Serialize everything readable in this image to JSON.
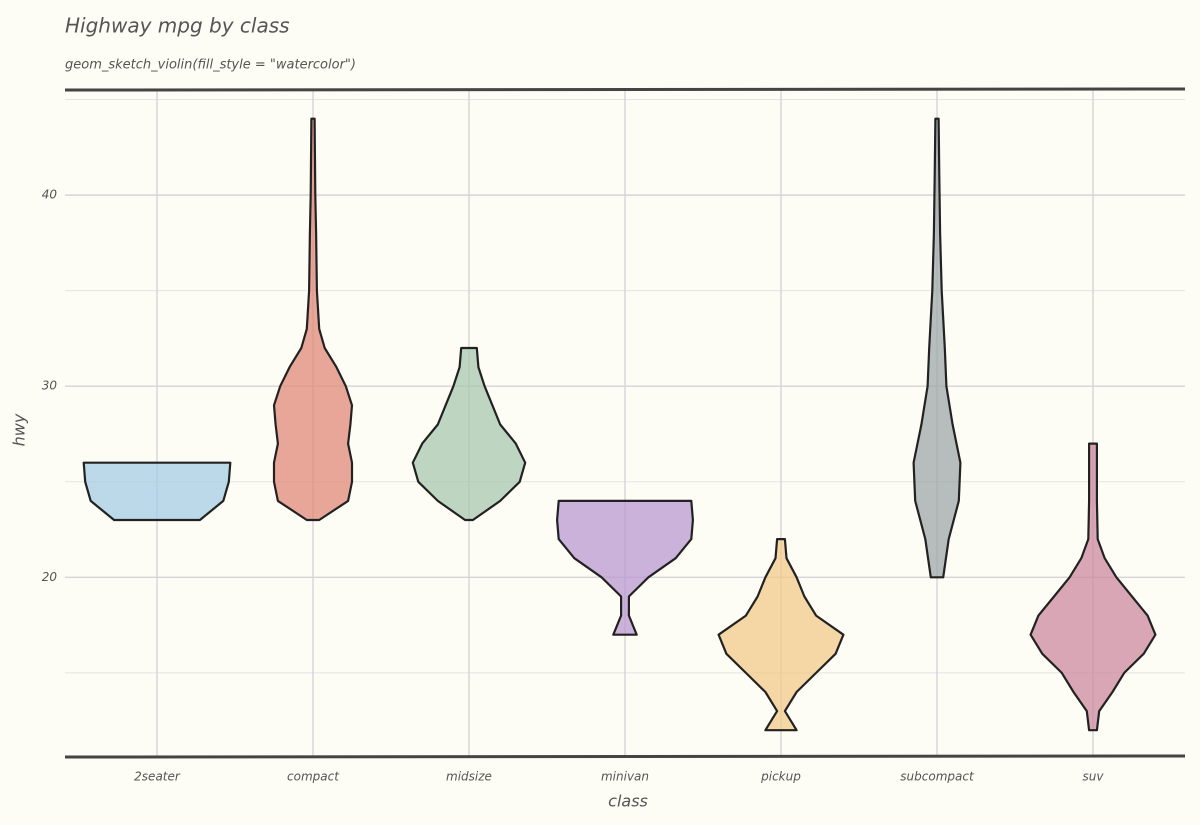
{
  "chart_data": {
    "type": "violin",
    "title": "Highway mpg by class",
    "subtitle": "geom_sketch_violin(fill_style = \"watercolor\")",
    "x_label": "class",
    "y_label": "hwy",
    "categories": [
      "2seater",
      "compact",
      "midsize",
      "minivan",
      "pickup",
      "subcompact",
      "suv"
    ],
    "violins": [
      {
        "color": "#a6cde4",
        "y": [
          23,
          24,
          25,
          26
        ],
        "width": [
          0.55,
          0.85,
          0.92,
          0.94
        ]
      },
      {
        "color": "#e08a78",
        "y": [
          23,
          24,
          25,
          26,
          27,
          28,
          29,
          30,
          31,
          32,
          33,
          35,
          38,
          40,
          44
        ],
        "width": [
          0.08,
          0.45,
          0.5,
          0.5,
          0.45,
          0.48,
          0.5,
          0.42,
          0.3,
          0.15,
          0.08,
          0.05,
          0.04,
          0.03,
          0.02
        ]
      },
      {
        "color": "#a8c8b0",
        "y": [
          23,
          24,
          25,
          26,
          27,
          28,
          29,
          30,
          31,
          32
        ],
        "width": [
          0.05,
          0.4,
          0.65,
          0.72,
          0.6,
          0.4,
          0.3,
          0.2,
          0.12,
          0.1
        ]
      },
      {
        "color": "#b99ad0",
        "y": [
          17,
          18,
          19,
          20,
          21,
          22,
          23,
          24
        ],
        "width": [
          0.15,
          0.05,
          0.05,
          0.3,
          0.65,
          0.85,
          0.87,
          0.85
        ]
      },
      {
        "color": "#f2c98a",
        "y": [
          12,
          13,
          14,
          15,
          16,
          17,
          18,
          19,
          20,
          21,
          22
        ],
        "width": [
          0.2,
          0.05,
          0.2,
          0.45,
          0.7,
          0.8,
          0.45,
          0.3,
          0.2,
          0.07,
          0.05
        ]
      },
      {
        "color": "#9da8a8",
        "y": [
          20,
          22,
          24,
          26,
          28,
          30,
          32,
          35,
          38,
          41,
          44
        ],
        "width": [
          0.08,
          0.15,
          0.28,
          0.3,
          0.2,
          0.12,
          0.1,
          0.06,
          0.04,
          0.03,
          0.02
        ]
      },
      {
        "color": "#cc8aa0",
        "y": [
          12,
          13,
          14,
          15,
          16,
          17,
          18,
          19,
          20,
          21,
          22,
          24,
          26,
          27
        ],
        "width": [
          0.05,
          0.08,
          0.25,
          0.4,
          0.65,
          0.8,
          0.7,
          0.5,
          0.3,
          0.15,
          0.06,
          0.05,
          0.05,
          0.05
        ]
      }
    ],
    "ylim": [
      10.6,
      45.5
    ],
    "yticks": [
      20,
      30,
      40
    ],
    "minor_yticks": [
      15,
      25,
      35,
      45
    ],
    "grid": true
  }
}
